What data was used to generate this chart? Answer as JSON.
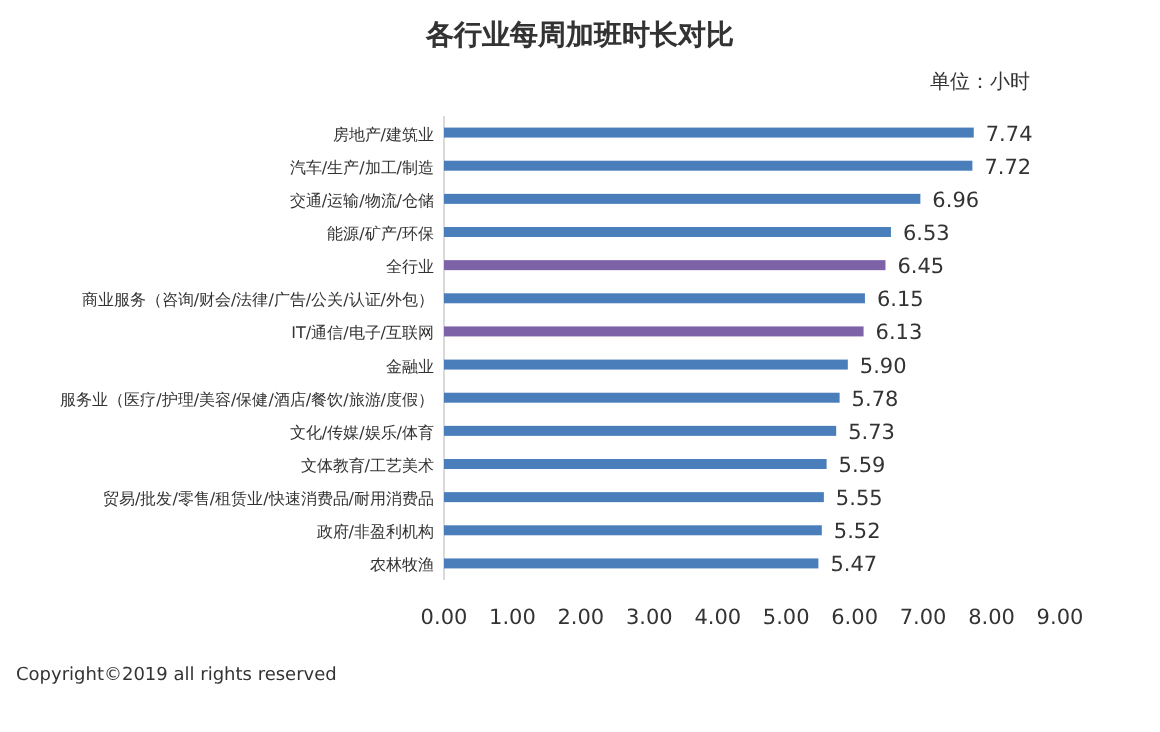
{
  "chart_data": {
    "type": "bar",
    "orientation": "horizontal",
    "title": "各行业每周加班时长对比",
    "annotations": [
      "单位：小时",
      "Copyright©2019 all rights reserved"
    ],
    "categories": [
      "房地产/建筑业",
      "汽车/生产/加工/制造",
      "交通/运输/物流/仓储",
      "能源/矿产/环保",
      "全行业",
      "商业服务（咨询/财会/法律/广告/公关/认证/外包）",
      "IT/通信/电子/互联网",
      "金融业",
      "服务业（医疗/护理/美容/保健/酒店/餐饮/旅游/度假）",
      "文化/传媒/娱乐/体育",
      "文体教育/工艺美术",
      "贸易/批发/零售/租赁业/快速消费品/耐用消费品",
      "政府/非盈利机构",
      "农林牧渔"
    ],
    "values": [
      7.74,
      7.72,
      6.96,
      6.53,
      6.45,
      6.15,
      6.13,
      5.9,
      5.78,
      5.73,
      5.59,
      5.55,
      5.52,
      5.47
    ],
    "value_labels": [
      "7.74",
      "7.72",
      "6.96",
      "6.53",
      "6.45",
      "6.15",
      "6.13",
      "5.90",
      "5.78",
      "5.73",
      "5.59",
      "5.55",
      "5.52",
      "5.47"
    ],
    "colors": [
      "#4a7ebb",
      "#4a7ebb",
      "#4a7ebb",
      "#4a7ebb",
      "#7e62a8",
      "#4a7ebb",
      "#7e62a8",
      "#4a7ebb",
      "#4a7ebb",
      "#4a7ebb",
      "#4a7ebb",
      "#4a7ebb",
      "#4a7ebb",
      "#4a7ebb"
    ],
    "xlim": [
      0,
      9
    ],
    "xticks": [
      {
        "value": 0,
        "label": "0.00"
      },
      {
        "value": 1,
        "label": "1.00"
      },
      {
        "value": 2,
        "label": "2.00"
      },
      {
        "value": 3,
        "label": "3.00"
      },
      {
        "value": 4,
        "label": "4.00"
      },
      {
        "value": 5,
        "label": "5.00"
      },
      {
        "value": 6,
        "label": "6.00"
      },
      {
        "value": 7,
        "label": "7.00"
      },
      {
        "value": 8,
        "label": "8.00"
      },
      {
        "value": 9,
        "label": "9.00"
      }
    ],
    "grid": false
  }
}
